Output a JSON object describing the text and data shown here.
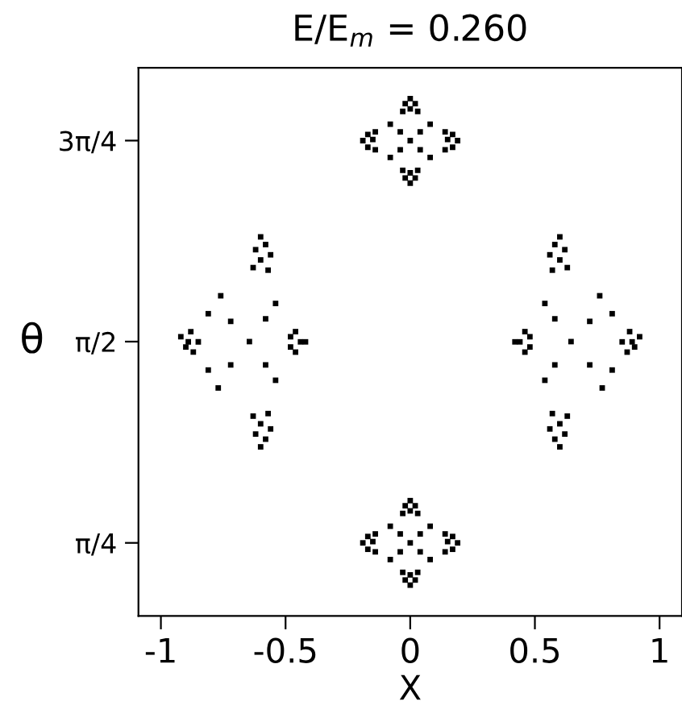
{
  "chart_data": {
    "type": "scatter",
    "title": "E/E$_{m}$ = 0.260",
    "xlabel": "X",
    "ylabel": "θ",
    "xlim": [
      -1.09,
      1.09
    ],
    "ylim": [
      0.5,
      2.64
    ],
    "xticks": [
      -1,
      -0.5,
      0,
      0.5,
      1
    ],
    "yticks": [
      {
        "value": 0.785,
        "label": "π/4"
      },
      {
        "value": 1.571,
        "label": "π/2"
      },
      {
        "value": 2.356,
        "label": "3π/4"
      }
    ],
    "marker": "square",
    "series": [
      {
        "color": "#000000",
        "x": [
          -0.645,
          -0.6,
          -0.58,
          -0.62,
          -0.56,
          -0.6,
          -0.63,
          -0.57,
          -0.6,
          -0.58,
          -0.62,
          -0.56,
          -0.6,
          -0.63,
          -0.57,
          -0.92,
          -0.9,
          -0.88,
          -0.87,
          -0.85,
          -0.89,
          -0.44,
          -0.46,
          -0.46,
          -0.48,
          -0.48,
          -0.42,
          -0.76,
          -0.72,
          -0.77,
          -0.72,
          -0.54,
          -0.58,
          -0.54,
          -0.58,
          -0.81,
          -0.81,
          0.645,
          0.6,
          0.58,
          0.62,
          0.56,
          0.6,
          0.63,
          0.57,
          0.6,
          0.58,
          0.62,
          0.56,
          0.6,
          0.63,
          0.57,
          0.92,
          0.9,
          0.88,
          0.87,
          0.85,
          0.89,
          0.44,
          0.46,
          0.46,
          0.48,
          0.48,
          0.42,
          0.76,
          0.72,
          0.77,
          0.72,
          0.54,
          0.58,
          0.54,
          0.58,
          0.81,
          0.81,
          0,
          0,
          -0.02,
          0.02,
          0,
          -0.03,
          0.03,
          0,
          -0.02,
          0.02,
          0,
          -0.03,
          0.03,
          -0.19,
          -0.17,
          -0.17,
          -0.15,
          -0.14,
          -0.14,
          0.19,
          0.17,
          0.17,
          0.15,
          0.14,
          0.14,
          0.08,
          -0.08,
          0.08,
          -0.08,
          0.04,
          -0.04,
          0.04,
          -0.04,
          0,
          0,
          -0.02,
          0.02,
          0,
          -0.03,
          0.03,
          0,
          -0.02,
          0.02,
          0,
          -0.03,
          0.03,
          -0.19,
          -0.17,
          -0.17,
          -0.15,
          -0.14,
          -0.14,
          0.19,
          0.17,
          0.17,
          0.15,
          0.14,
          0.14,
          0.08,
          -0.08,
          0.08,
          -0.08,
          0.04,
          -0.04,
          0.04,
          -0.04
        ],
        "values": [
          1.571,
          1.98,
          1.95,
          1.93,
          1.91,
          1.89,
          1.86,
          1.85,
          1.16,
          1.19,
          1.21,
          1.23,
          1.25,
          1.28,
          1.29,
          1.59,
          1.55,
          1.61,
          1.53,
          1.57,
          1.57,
          1.57,
          1.61,
          1.53,
          1.59,
          1.55,
          1.57,
          1.75,
          1.65,
          1.39,
          1.48,
          1.72,
          1.66,
          1.42,
          1.48,
          1.68,
          1.46,
          1.571,
          1.98,
          1.95,
          1.93,
          1.91,
          1.89,
          1.86,
          1.85,
          1.16,
          1.19,
          1.21,
          1.23,
          1.25,
          1.28,
          1.29,
          1.59,
          1.55,
          1.61,
          1.53,
          1.57,
          1.57,
          1.57,
          1.61,
          1.53,
          1.59,
          1.55,
          1.57,
          1.75,
          1.65,
          1.39,
          1.48,
          1.72,
          1.66,
          1.42,
          1.48,
          1.68,
          1.46,
          2.356,
          2.52,
          2.5,
          2.5,
          2.48,
          2.47,
          2.47,
          2.19,
          2.21,
          2.21,
          2.23,
          2.24,
          2.24,
          2.356,
          2.38,
          2.33,
          2.36,
          2.39,
          2.32,
          2.356,
          2.38,
          2.33,
          2.36,
          2.39,
          2.32,
          2.42,
          2.42,
          2.29,
          2.29,
          2.39,
          2.39,
          2.32,
          2.32,
          0.785,
          0.95,
          0.93,
          0.93,
          0.91,
          0.9,
          0.9,
          0.62,
          0.64,
          0.64,
          0.66,
          0.67,
          0.67,
          0.785,
          0.81,
          0.76,
          0.79,
          0.82,
          0.75,
          0.785,
          0.81,
          0.76,
          0.79,
          0.82,
          0.75,
          0.85,
          0.85,
          0.72,
          0.72,
          0.82,
          0.82,
          0.75,
          0.75
        ]
      }
    ]
  }
}
